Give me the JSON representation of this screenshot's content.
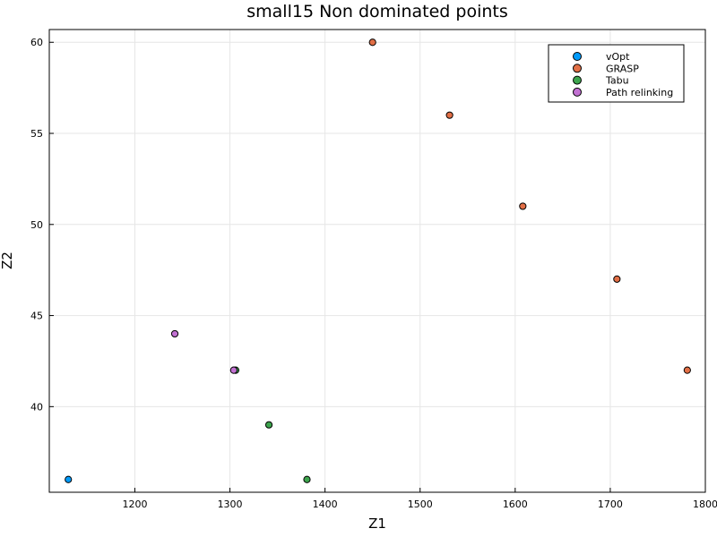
{
  "chart_data": {
    "type": "scatter",
    "title": "small15 Non dominated points",
    "xlabel": "Z1",
    "ylabel": "Z2",
    "xlim": [
      1110,
      1800
    ],
    "ylim": [
      35.3,
      60.7
    ],
    "xticks": [
      1200,
      1300,
      1400,
      1500,
      1600,
      1700,
      1800
    ],
    "yticks": [
      40,
      45,
      50,
      55,
      60
    ],
    "grid": true,
    "legend_position": "top-right",
    "series": [
      {
        "name": "vOpt",
        "color": "#009AF9",
        "points": [
          {
            "x": 1130,
            "y": 36
          }
        ]
      },
      {
        "name": "GRASP",
        "color": "#E26F46",
        "points": [
          {
            "x": 1450,
            "y": 60
          },
          {
            "x": 1531,
            "y": 56
          },
          {
            "x": 1608,
            "y": 51
          },
          {
            "x": 1707,
            "y": 47
          },
          {
            "x": 1781,
            "y": 42
          }
        ]
      },
      {
        "name": "Tabu",
        "color": "#3DA44D",
        "points": [
          {
            "x": 1306,
            "y": 42
          },
          {
            "x": 1341,
            "y": 39
          },
          {
            "x": 1381,
            "y": 36
          }
        ]
      },
      {
        "name": "Path relinking",
        "color": "#C271D2",
        "points": [
          {
            "x": 1242,
            "y": 44
          },
          {
            "x": 1304,
            "y": 42
          }
        ]
      }
    ]
  }
}
